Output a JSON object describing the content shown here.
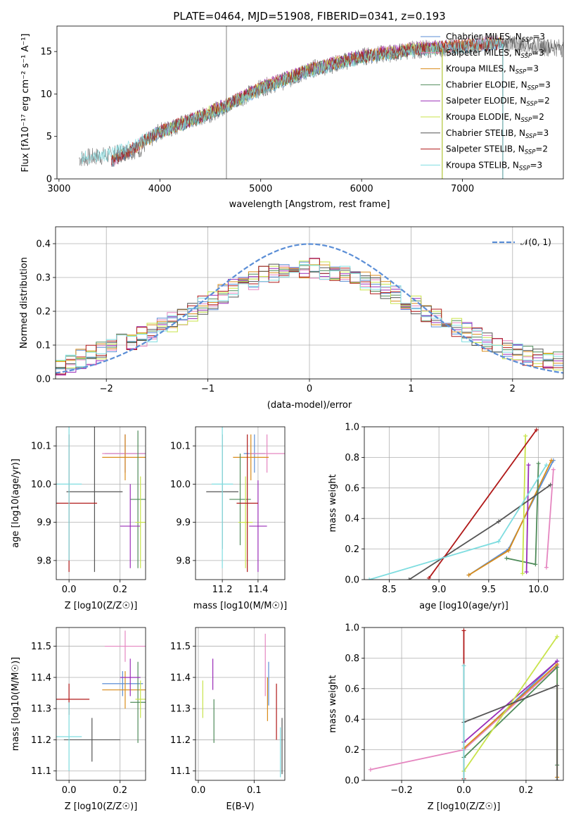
{
  "colors": {
    "Chabrier MILES": "#5b8ed6",
    "Salpeter MILES": "#e586c0",
    "Kroupa MILES": "#d98c1a",
    "Chabrier ELODIE": "#4f8b5a",
    "Salpeter ELODIE": "#9a2db8",
    "Kroupa ELODIE": "#c8e34a",
    "Chabrier STELIB": "#555555",
    "Salpeter STELIB": "#b01818",
    "Kroupa STELIB": "#7fdde0"
  },
  "chart_data": [
    {
      "panel": "spectrum",
      "type": "line",
      "title": "PLATE=0464, MJD=51908, FIBERID=0341, z=0.193",
      "xlabel": "wavelength [Angstrom, rest frame]",
      "ylabel": "Flux [fλ10⁻¹⁷ erg cm⁻² s⁻¹ A⁻¹]",
      "xlim": [
        2980,
        8000
      ],
      "ylim": [
        0,
        18
      ],
      "xticks": [
        3000,
        4000,
        5000,
        6000,
        7000
      ],
      "yticks": [
        0,
        5,
        10,
        15
      ],
      "legend_position": "upper right",
      "series": [
        {
          "name": "Chabrier MILES, N_SSP=3",
          "label_main": "Chabrier MILES, N",
          "label_sub": "SSP",
          "label_tail": "=3",
          "x": [
            3520,
            4000,
            4500,
            5000,
            5500,
            6000,
            6500,
            7000,
            7400
          ],
          "y": [
            2.0,
            5.5,
            7.6,
            10.6,
            12.8,
            14.3,
            15.2,
            15.6,
            16.0
          ]
        },
        {
          "name": "Salpeter MILES, N_SSP=3",
          "label_main": "Salpeter MILES, N",
          "label_sub": "SSP",
          "label_tail": "=3",
          "x": [
            3520,
            4000,
            4500,
            5000,
            5500,
            6000,
            6500,
            7000,
            7400
          ],
          "y": [
            2.0,
            5.6,
            7.8,
            10.8,
            13.0,
            14.5,
            15.4,
            15.8,
            16.2
          ]
        },
        {
          "name": "Kroupa MILES, N_SSP=3",
          "label_main": "Kroupa MILES, N",
          "label_sub": "SSP",
          "label_tail": "=3",
          "x": [
            3520,
            4000,
            4500,
            5000,
            5500,
            6000,
            6500,
            7000,
            7400
          ],
          "y": [
            2.0,
            5.5,
            7.7,
            10.7,
            12.9,
            14.4,
            15.3,
            15.7,
            16.1
          ]
        },
        {
          "name": "Chabrier ELODIE, N_SSP=3",
          "label_main": "Chabrier ELODIE, N",
          "label_sub": "SSP",
          "label_tail": "=3",
          "x": [
            3900,
            4300,
            4700,
            5000,
            5500,
            6000,
            6500,
            6800
          ],
          "y": [
            5.0,
            6.8,
            8.9,
            10.7,
            12.9,
            14.4,
            15.2,
            15.5
          ]
        },
        {
          "name": "Salpeter ELODIE, N_SSP=2",
          "label_main": "Salpeter ELODIE, N",
          "label_sub": "SSP",
          "label_tail": "=2",
          "x": [
            3900,
            4300,
            4700,
            5000,
            5500,
            6000,
            6500,
            6800
          ],
          "y": [
            5.1,
            6.9,
            9.0,
            10.8,
            13.0,
            14.5,
            15.3,
            15.6
          ]
        },
        {
          "name": "Kroupa ELODIE, N_SSP=2",
          "label_main": "Kroupa ELODIE, N",
          "label_sub": "SSP",
          "label_tail": "=2",
          "x": [
            3900,
            4300,
            4700,
            5000,
            5500,
            6000,
            6500,
            6800
          ],
          "y": [
            5.0,
            6.9,
            8.9,
            10.7,
            12.9,
            14.4,
            15.2,
            15.5
          ]
        },
        {
          "name": "Chabrier STELIB, N_SSP=3",
          "label_main": "Chabrier STELIB, N",
          "label_sub": "SSP",
          "label_tail": "=3",
          "x": [
            3520,
            4000,
            4500,
            5000,
            5500,
            6000,
            6500,
            7000,
            7400,
            8000
          ],
          "y": [
            2.0,
            5.6,
            7.7,
            10.6,
            12.8,
            14.3,
            15.1,
            15.5,
            16.0,
            15.5
          ]
        },
        {
          "name": "Salpeter STELIB, N_SSP=2",
          "label_main": "Salpeter STELIB, N",
          "label_sub": "SSP",
          "label_tail": "=2",
          "x": [
            3520,
            4000,
            4500,
            5000,
            5500,
            6000,
            6500,
            7000,
            7400
          ],
          "y": [
            2.0,
            5.6,
            7.8,
            10.7,
            12.9,
            14.4,
            15.2,
            15.7,
            16.0
          ]
        },
        {
          "name": "Kroupa STELIB, N_SSP=3",
          "label_main": "Kroupa STELIB, N",
          "label_sub": "SSP",
          "label_tail": "=3",
          "x": [
            3220,
            3500,
            4000,
            4500,
            5000,
            5500,
            6000,
            6500,
            7000,
            7400
          ],
          "y": [
            2.5,
            2.8,
            5.5,
            7.6,
            10.5,
            12.7,
            14.2,
            15.0,
            15.5,
            15.9
          ]
        }
      ],
      "data_flux": {
        "x": [
          3200,
          3500,
          3800,
          4000,
          4300,
          4500,
          4800,
          5000,
          5300,
          5500,
          5800,
          6000,
          6300,
          6500,
          6800,
          7000,
          7300,
          7500,
          8000
        ],
        "y": [
          2.4,
          2.8,
          3.5,
          5.6,
          6.8,
          7.7,
          9.5,
          10.7,
          11.8,
          12.9,
          13.7,
          14.4,
          14.8,
          15.2,
          15.4,
          15.6,
          16.0,
          15.8,
          15.4
        ]
      }
    },
    {
      "panel": "residuals",
      "type": "line",
      "xlabel": "(data-model)/error",
      "ylabel": "Normed distribution",
      "xlim": [
        -2.5,
        2.5
      ],
      "ylim": [
        0,
        0.45
      ],
      "xticks": [
        -2,
        -1,
        0,
        1,
        2
      ],
      "yticks": [
        0.0,
        0.1,
        0.2,
        0.3,
        0.4
      ],
      "legend_position": "upper right",
      "legend_label": "𝒩(0, 1)",
      "gaussian": {
        "mu": 0,
        "sigma": 1
      },
      "hist_x": [
        -2.4,
        -2.0,
        -1.6,
        -1.2,
        -0.8,
        -0.4,
        0.0,
        0.4,
        0.8,
        1.2,
        1.6,
        2.0,
        2.4
      ],
      "hist_y": [
        0.04,
        0.09,
        0.13,
        0.19,
        0.26,
        0.31,
        0.33,
        0.31,
        0.26,
        0.19,
        0.13,
        0.08,
        0.05
      ]
    },
    {
      "panel": "age-vs-Z",
      "type": "scatter",
      "xlabel": "Z [log10(Z/Z☉)]",
      "ylabel": "age [log10(age/yr)]",
      "xlim": [
        -0.05,
        0.3
      ],
      "ylim": [
        9.75,
        10.15
      ],
      "xticks": [
        0.0,
        0.2
      ],
      "yticks": [
        9.8,
        9.9,
        10.0,
        10.1
      ],
      "points": [
        {
          "model": "Chabrier MILES",
          "x": 0.22,
          "y": 10.08,
          "xerr": 0.08,
          "yerr": 0.05
        },
        {
          "model": "Salpeter MILES",
          "x": 0.22,
          "y": 10.08,
          "xerr": 0.09,
          "yerr": 0.05
        },
        {
          "model": "Kroupa MILES",
          "x": 0.22,
          "y": 10.07,
          "xerr": 0.09,
          "yerr": 0.06
        },
        {
          "model": "Chabrier ELODIE",
          "x": 0.27,
          "y": 9.96,
          "xerr": 0.03,
          "yerr": 0.18
        },
        {
          "model": "Salpeter ELODIE",
          "x": 0.24,
          "y": 9.89,
          "xerr": 0.04,
          "yerr": 0.11
        },
        {
          "model": "Kroupa ELODIE",
          "x": 0.28,
          "y": 9.9,
          "xerr": 0.02,
          "yerr": 0.12
        },
        {
          "model": "Chabrier STELIB",
          "x": 0.1,
          "y": 9.98,
          "xerr": 0.11,
          "yerr": 0.21
        },
        {
          "model": "Salpeter STELIB",
          "x": 0.0,
          "y": 9.95,
          "xerr": 0.11,
          "yerr": 0.18
        },
        {
          "model": "Kroupa STELIB",
          "x": 0.0,
          "y": 10.0,
          "xerr": 0.05,
          "yerr": 0.2
        }
      ]
    },
    {
      "panel": "age-vs-mass",
      "type": "scatter",
      "xlabel": "mass [log10(M/M☉)]",
      "xlim": [
        11.05,
        11.55
      ],
      "ylim": [
        9.75,
        10.15
      ],
      "xticks": [
        11.2,
        11.4
      ],
      "yticks": [
        9.8,
        9.9,
        10.0,
        10.1
      ],
      "points": [
        {
          "model": "Chabrier MILES",
          "x": 11.38,
          "y": 10.08,
          "xerr": 0.06,
          "yerr": 0.05
        },
        {
          "model": "Salpeter MILES",
          "x": 11.45,
          "y": 10.08,
          "xerr": 0.1,
          "yerr": 0.05
        },
        {
          "model": "Kroupa MILES",
          "x": 11.36,
          "y": 10.07,
          "xerr": 0.1,
          "yerr": 0.06
        },
        {
          "model": "Chabrier ELODIE",
          "x": 11.3,
          "y": 9.96,
          "xerr": 0.06,
          "yerr": 0.12
        },
        {
          "model": "Salpeter ELODIE",
          "x": 11.4,
          "y": 9.89,
          "xerr": 0.05,
          "yerr": 0.12
        },
        {
          "model": "Kroupa ELODIE",
          "x": 11.33,
          "y": 9.9,
          "xerr": 0.04,
          "yerr": 0.12
        },
        {
          "model": "Chabrier STELIB",
          "x": 11.2,
          "y": 9.98,
          "xerr": 0.09,
          "yerr": 0.15
        },
        {
          "model": "Salpeter STELIB",
          "x": 11.34,
          "y": 9.95,
          "xerr": 0.06,
          "yerr": 0.18
        },
        {
          "model": "Kroupa STELIB",
          "x": 11.2,
          "y": 10.0,
          "xerr": 0.06,
          "yerr": 0.22
        }
      ]
    },
    {
      "panel": "mass-weight-vs-age",
      "type": "line",
      "xlabel": "age [log10(age/yr)]",
      "ylabel": "mass weight",
      "xlim": [
        8.25,
        10.25
      ],
      "ylim": [
        0,
        1
      ],
      "xticks": [
        8.5,
        9.0,
        9.5,
        10.0
      ],
      "yticks": [
        0.0,
        0.2,
        0.4,
        0.6,
        0.8,
        1.0
      ],
      "series": [
        {
          "model": "Chabrier MILES",
          "x": [
            9.3,
            9.7,
            10.15
          ],
          "y": [
            0.03,
            0.2,
            0.78
          ]
        },
        {
          "model": "Salpeter MILES",
          "x": [
            10.08,
            10.15
          ],
          "y": [
            0.08,
            0.72
          ]
        },
        {
          "model": "Kroupa MILES",
          "x": [
            9.3,
            9.7,
            10.13
          ],
          "y": [
            0.03,
            0.19,
            0.78
          ]
        },
        {
          "model": "Chabrier ELODIE",
          "x": [
            9.68,
            9.97,
            10.0
          ],
          "y": [
            0.14,
            0.1,
            0.76
          ]
        },
        {
          "model": "Salpeter ELODIE",
          "x": [
            9.88,
            9.9
          ],
          "y": [
            0.05,
            0.75
          ]
        },
        {
          "model": "Kroupa ELODIE",
          "x": [
            9.84,
            9.87
          ],
          "y": [
            0.04,
            0.94
          ]
        },
        {
          "model": "Chabrier STELIB",
          "x": [
            8.7,
            9.6,
            10.12
          ],
          "y": [
            0.0,
            0.38,
            0.62
          ]
        },
        {
          "model": "Salpeter STELIB",
          "x": [
            8.9,
            9.98
          ],
          "y": [
            0.01,
            0.98
          ]
        },
        {
          "model": "Kroupa STELIB",
          "x": [
            8.3,
            9.6,
            10.08
          ],
          "y": [
            0.0,
            0.25,
            0.75
          ]
        }
      ]
    },
    {
      "panel": "mass-vs-Z",
      "type": "scatter",
      "xlabel": "Z [log10(Z/Z☉)]",
      "ylabel": "mass [log10(M/M☉)]",
      "xlim": [
        -0.05,
        0.3
      ],
      "ylim": [
        11.07,
        11.56
      ],
      "xticks": [
        0.0,
        0.2
      ],
      "yticks": [
        11.1,
        11.2,
        11.3,
        11.4,
        11.5
      ],
      "points": [
        {
          "model": "Chabrier MILES",
          "x": 0.21,
          "y": 11.38,
          "xerr": 0.08,
          "yerr": 0.04
        },
        {
          "model": "Salpeter MILES",
          "x": 0.22,
          "y": 11.5,
          "xerr": 0.08,
          "yerr": 0.05
        },
        {
          "model": "Kroupa MILES",
          "x": 0.22,
          "y": 11.36,
          "xerr": 0.09,
          "yerr": 0.06
        },
        {
          "model": "Chabrier ELODIE",
          "x": 0.27,
          "y": 11.32,
          "xerr": 0.03,
          "yerr": 0.13
        },
        {
          "model": "Salpeter ELODIE",
          "x": 0.24,
          "y": 11.4,
          "xerr": 0.04,
          "yerr": 0.06
        },
        {
          "model": "Kroupa ELODIE",
          "x": 0.28,
          "y": 11.33,
          "xerr": 0.02,
          "yerr": 0.06
        },
        {
          "model": "Chabrier STELIB",
          "x": 0.09,
          "y": 11.2,
          "xerr": 0.11,
          "yerr": 0.07
        },
        {
          "model": "Salpeter STELIB",
          "x": 0.0,
          "y": 11.33,
          "xerr": 0.08,
          "yerr": 0.05
        },
        {
          "model": "Kroupa STELIB",
          "x": 0.0,
          "y": 11.21,
          "xerr": 0.05,
          "yerr": 0.11
        }
      ]
    },
    {
      "panel": "mass-vs-EBV",
      "type": "scatter",
      "xlabel": "E(B-V)",
      "xlim": [
        -0.005,
        0.155
      ],
      "ylim": [
        11.07,
        11.56
      ],
      "xticks": [
        0.0,
        0.1
      ],
      "yticks": [
        11.1,
        11.2,
        11.3,
        11.4,
        11.5
      ],
      "points": [
        {
          "model": "Chabrier MILES",
          "x": 0.126,
          "y": 11.38,
          "yerr": 0.07
        },
        {
          "model": "Salpeter MILES",
          "x": 0.12,
          "y": 11.44,
          "yerr": 0.1
        },
        {
          "model": "Kroupa MILES",
          "x": 0.124,
          "y": 11.33,
          "yerr": 0.07
        },
        {
          "model": "Chabrier ELODIE",
          "x": 0.028,
          "y": 11.26,
          "yerr": 0.07
        },
        {
          "model": "Salpeter ELODIE",
          "x": 0.026,
          "y": 11.41,
          "yerr": 0.05
        },
        {
          "model": "Kroupa ELODIE",
          "x": 0.008,
          "y": 11.33,
          "yerr": 0.06
        },
        {
          "model": "Chabrier STELIB",
          "x": 0.15,
          "y": 11.18,
          "yerr": 0.09
        },
        {
          "model": "Salpeter STELIB",
          "x": 0.14,
          "y": 11.29,
          "yerr": 0.09
        },
        {
          "model": "Kroupa STELIB",
          "x": 0.147,
          "y": 11.16,
          "yerr": 0.08
        }
      ]
    },
    {
      "panel": "mass-weight-vs-Z",
      "type": "line",
      "xlabel": "Z [log10(Z/Z☉)]",
      "ylabel": "mass weight",
      "xlim": [
        -0.32,
        0.32
      ],
      "ylim": [
        0,
        1
      ],
      "xticks": [
        -0.2,
        0.0,
        0.2
      ],
      "yticks": [
        0.0,
        0.2,
        0.4,
        0.6,
        0.8,
        1.0
      ],
      "series": [
        {
          "model": "Chabrier MILES",
          "x": [
            0.0,
            0.3
          ],
          "y": [
            0.2,
            0.78
          ]
        },
        {
          "model": "Salpeter MILES",
          "x": [
            -0.3,
            0.0,
            0.3
          ],
          "y": [
            0.07,
            0.2,
            0.75
          ]
        },
        {
          "model": "Kroupa MILES",
          "x": [
            0.0,
            0.3,
            0.3
          ],
          "y": [
            0.21,
            0.76,
            0.02
          ]
        },
        {
          "model": "Chabrier ELODIE",
          "x": [
            0.0,
            0.3,
            0.3
          ],
          "y": [
            0.15,
            0.74,
            0.1
          ]
        },
        {
          "model": "Salpeter ELODIE",
          "x": [
            0.0,
            0.3
          ],
          "y": [
            0.25,
            0.78
          ]
        },
        {
          "model": "Kroupa ELODIE",
          "x": [
            0.0,
            0.3
          ],
          "y": [
            0.06,
            0.94
          ]
        },
        {
          "model": "Chabrier STELIB",
          "x": [
            0.0,
            0.0,
            0.3,
            0.3
          ],
          "y": [
            0.0,
            0.38,
            0.62,
            0.0
          ]
        },
        {
          "model": "Salpeter STELIB",
          "x": [
            0.0,
            0.0
          ],
          "y": [
            0.01,
            0.98
          ]
        },
        {
          "model": "Kroupa STELIB",
          "x": [
            0.0,
            0.0
          ],
          "y": [
            0.0,
            0.75
          ]
        }
      ]
    }
  ]
}
